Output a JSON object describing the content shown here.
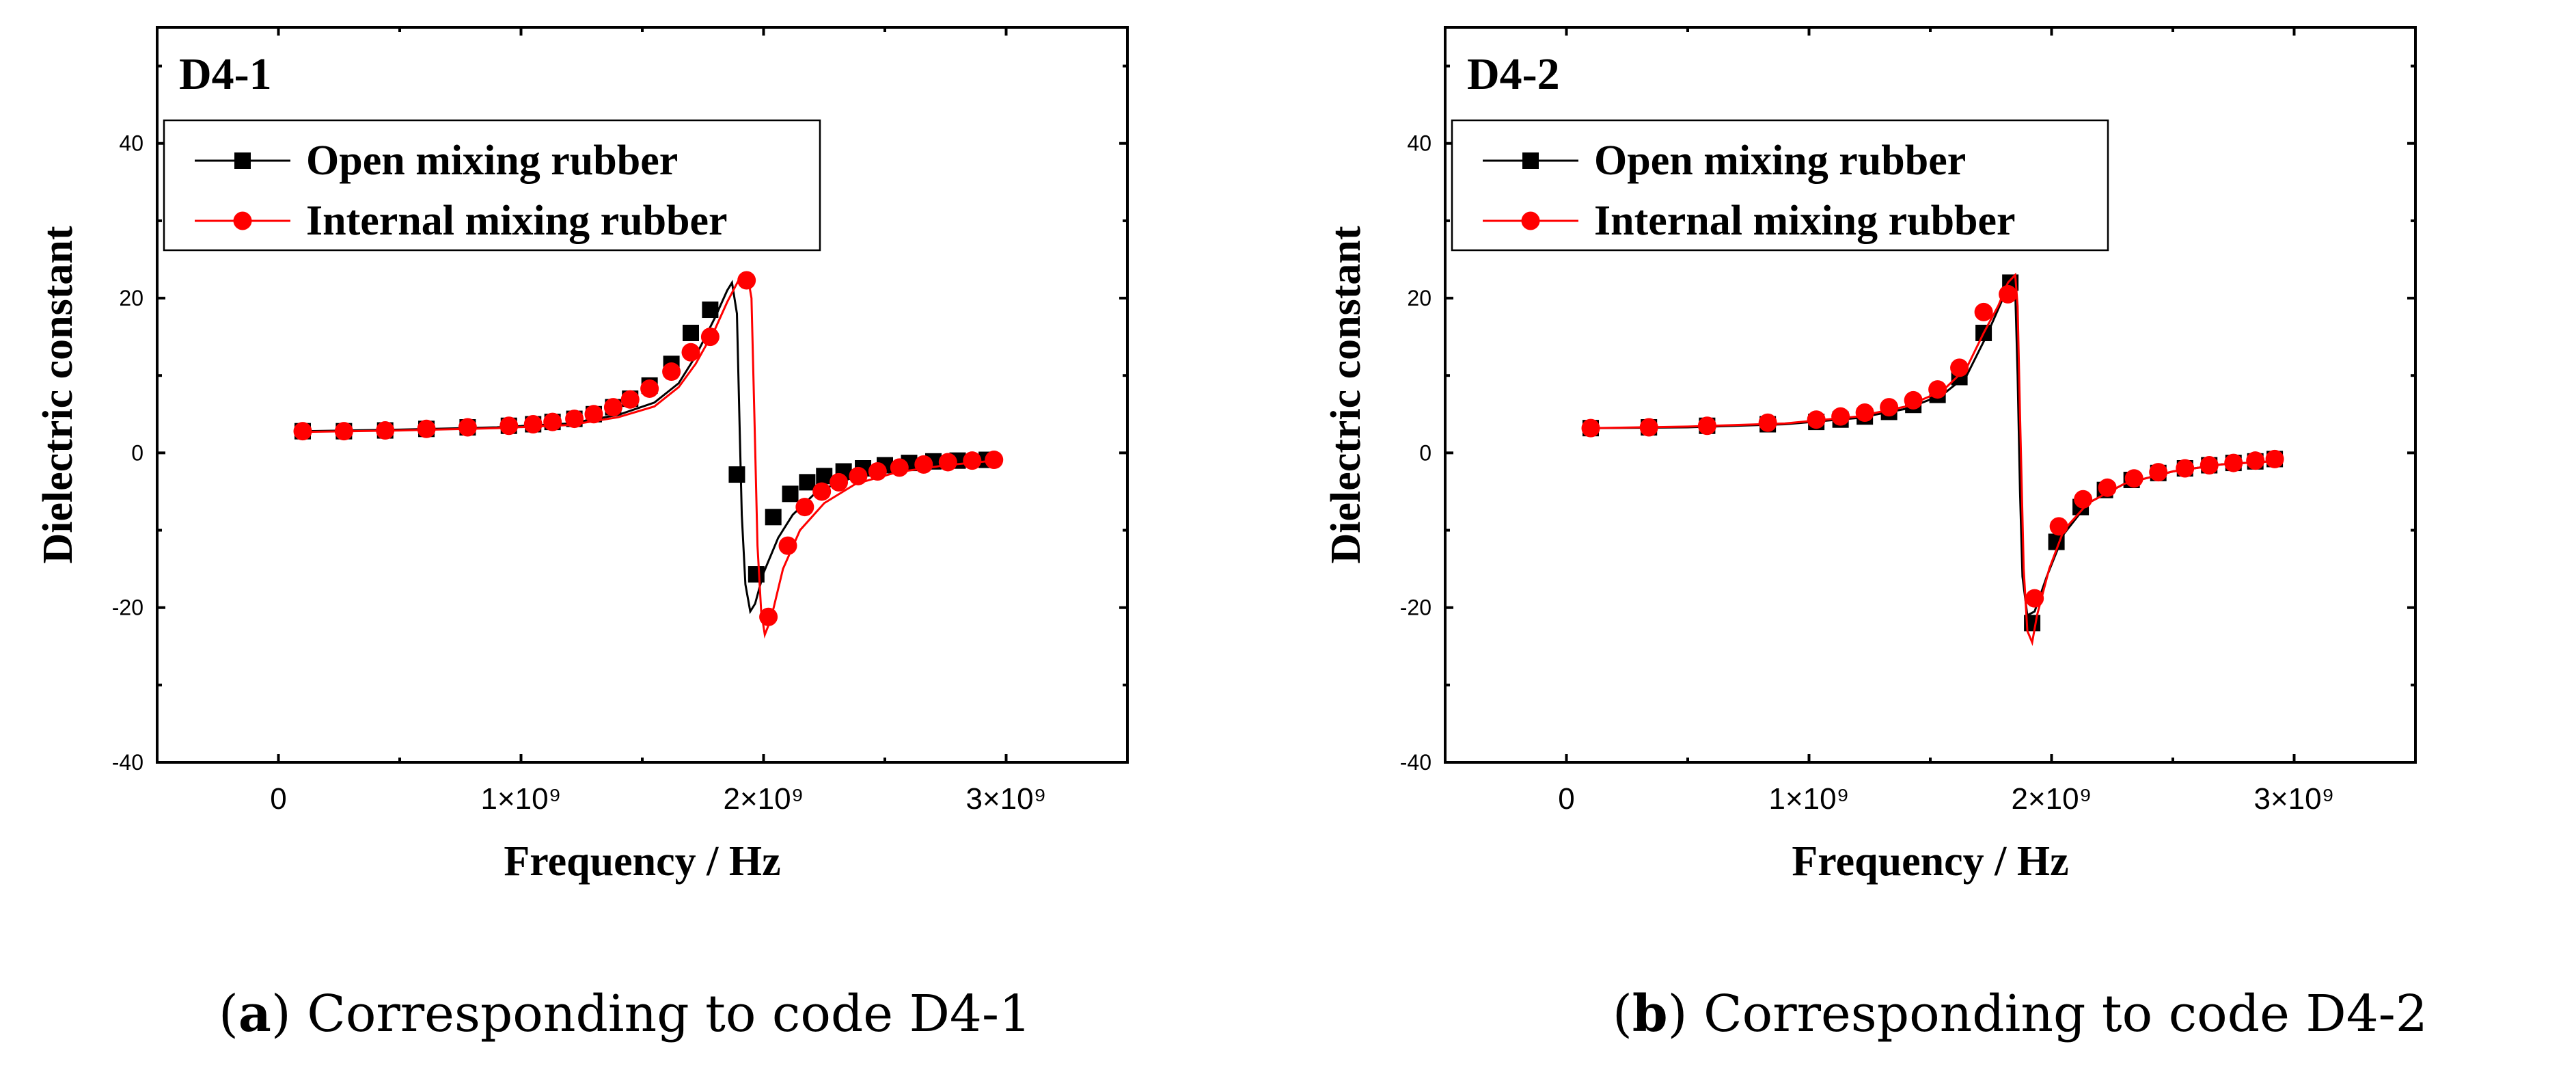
{
  "figure": {
    "captions": [
      {
        "letter": "a",
        "text": "Corresponding to code D4-1"
      },
      {
        "letter": "b",
        "text": "Corresponding to code D4-2"
      }
    ]
  },
  "chart_data": [
    {
      "type": "line",
      "title": "D4-1",
      "xlabel": "Frequency / Hz",
      "ylabel": "Dielectric constant",
      "xlim": [
        -500000000,
        3500000000
      ],
      "ylim": [
        -40,
        55
      ],
      "x_ticks": [
        0,
        1000000000,
        2000000000,
        3000000000
      ],
      "x_tick_labels": [
        "0",
        "1×10⁹",
        "2×10⁹",
        "3×10⁹"
      ],
      "y_ticks": [
        -40,
        -20,
        0,
        20,
        40
      ],
      "y_tick_labels": [
        "-40",
        "-20",
        "0",
        "20",
        "40"
      ],
      "legend_position": "top-left",
      "colors": {
        "Open mixing rubber": "#000000",
        "Internal mixing rubber": "#ff0000"
      },
      "series": [
        {
          "name": "Open mixing rubber",
          "line": [
            [
              100000000,
              2.8
            ],
            [
              500000000,
              3.0
            ],
            [
              900000000,
              3.3
            ],
            [
              1200000000,
              3.8
            ],
            [
              1400000000,
              4.9
            ],
            [
              1550000000,
              6.5
            ],
            [
              1650000000,
              9.0
            ],
            [
              1720000000,
              12.5
            ],
            [
              1800000000,
              17.5
            ],
            [
              1850000000,
              21.0
            ],
            [
              1870000000,
              22.0
            ],
            [
              1890000000,
              18.0
            ],
            [
              1900000000,
              5.0
            ],
            [
              1910000000,
              -8.0
            ],
            [
              1925000000,
              -17.0
            ],
            [
              1945000000,
              -20.5
            ],
            [
              1965000000,
              -19.5
            ],
            [
              2000000000,
              -15.5
            ],
            [
              2060000000,
              -11.0
            ],
            [
              2120000000,
              -8.0
            ],
            [
              2220000000,
              -5.0
            ],
            [
              2350000000,
              -3.4
            ],
            [
              2500000000,
              -2.3
            ],
            [
              2700000000,
              -1.5
            ],
            [
              2950000000,
              -1.0
            ]
          ],
          "markers": [
            [
              100000000,
              2.8
            ],
            [
              270000000,
              2.8
            ],
            [
              440000000,
              2.9
            ],
            [
              610000000,
              3.1
            ],
            [
              780000000,
              3.3
            ],
            [
              950000000,
              3.5
            ],
            [
              1050000000,
              3.7
            ],
            [
              1130000000,
              4.0
            ],
            [
              1220000000,
              4.4
            ],
            [
              1300000000,
              5.0
            ],
            [
              1380000000,
              5.9
            ],
            [
              1450000000,
              7.0
            ],
            [
              1530000000,
              8.7
            ],
            [
              1620000000,
              11.5
            ],
            [
              1700000000,
              15.5
            ],
            [
              1780000000,
              18.5
            ],
            [
              1890000000,
              -2.8
            ],
            [
              1970000000,
              -15.7
            ],
            [
              2040000000,
              -8.3
            ],
            [
              2110000000,
              -5.3
            ],
            [
              2180000000,
              -3.8
            ],
            [
              2250000000,
              -3.0
            ],
            [
              2330000000,
              -2.4
            ],
            [
              2410000000,
              -2.0
            ],
            [
              2500000000,
              -1.6
            ],
            [
              2600000000,
              -1.3
            ],
            [
              2700000000,
              -1.1
            ],
            [
              2800000000,
              -1.0
            ],
            [
              2920000000,
              -0.9
            ]
          ]
        },
        {
          "name": "Internal mixing rubber",
          "line": [
            [
              100000000,
              2.7
            ],
            [
              500000000,
              2.9
            ],
            [
              900000000,
              3.2
            ],
            [
              1200000000,
              3.6
            ],
            [
              1400000000,
              4.6
            ],
            [
              1550000000,
              6.0
            ],
            [
              1650000000,
              8.5
            ],
            [
              1720000000,
              11.5
            ],
            [
              1800000000,
              16.0
            ],
            [
              1850000000,
              19.5
            ],
            [
              1900000000,
              22.5
            ],
            [
              1935000000,
              22.8
            ],
            [
              1950000000,
              20.0
            ],
            [
              1962000000,
              5.0
            ],
            [
              1975000000,
              -12.0
            ],
            [
              1990000000,
              -20.5
            ],
            [
              2005000000,
              -23.5
            ],
            [
              2030000000,
              -21.5
            ],
            [
              2080000000,
              -15.0
            ],
            [
              2150000000,
              -10.0
            ],
            [
              2250000000,
              -6.5
            ],
            [
              2380000000,
              -4.0
            ],
            [
              2550000000,
              -2.5
            ],
            [
              2750000000,
              -1.6
            ],
            [
              2950000000,
              -1.0
            ]
          ],
          "markers": [
            [
              100000000,
              2.8
            ],
            [
              270000000,
              2.8
            ],
            [
              440000000,
              2.9
            ],
            [
              610000000,
              3.1
            ],
            [
              780000000,
              3.3
            ],
            [
              950000000,
              3.5
            ],
            [
              1050000000,
              3.7
            ],
            [
              1130000000,
              4.0
            ],
            [
              1220000000,
              4.4
            ],
            [
              1300000000,
              5.0
            ],
            [
              1380000000,
              5.9
            ],
            [
              1450000000,
              6.9
            ],
            [
              1530000000,
              8.3
            ],
            [
              1620000000,
              10.5
            ],
            [
              1700000000,
              13.0
            ],
            [
              1780000000,
              15.0
            ],
            [
              1930000000,
              22.3
            ],
            [
              2020000000,
              -21.2
            ],
            [
              2100000000,
              -12.0
            ],
            [
              2170000000,
              -7.0
            ],
            [
              2240000000,
              -5.0
            ],
            [
              2310000000,
              -3.8
            ],
            [
              2390000000,
              -3.0
            ],
            [
              2470000000,
              -2.4
            ],
            [
              2560000000,
              -1.9
            ],
            [
              2660000000,
              -1.5
            ],
            [
              2760000000,
              -1.2
            ],
            [
              2860000000,
              -1.0
            ],
            [
              2950000000,
              -0.9
            ]
          ]
        }
      ]
    },
    {
      "type": "line",
      "title": "D4-2",
      "xlabel": "Frequency / Hz",
      "ylabel": "Dielectric constant",
      "xlim": [
        -500000000,
        3500000000
      ],
      "ylim": [
        -40,
        55
      ],
      "x_ticks": [
        0,
        1000000000,
        2000000000,
        3000000000
      ],
      "x_tick_labels": [
        "0",
        "1×10⁹",
        "2×10⁹",
        "3×10⁹"
      ],
      "y_ticks": [
        -40,
        -20,
        0,
        20,
        40
      ],
      "y_tick_labels": [
        "-40",
        "-20",
        "0",
        "20",
        "40"
      ],
      "legend_position": "top-left",
      "colors": {
        "Open mixing rubber": "#000000",
        "Internal mixing rubber": "#ff0000"
      },
      "series": [
        {
          "name": "Open mixing rubber",
          "line": [
            [
              100000000,
              3.2
            ],
            [
              500000000,
              3.3
            ],
            [
              900000000,
              3.7
            ],
            [
              1200000000,
              4.5
            ],
            [
              1400000000,
              5.7
            ],
            [
              1550000000,
              7.5
            ],
            [
              1650000000,
              10.0
            ],
            [
              1730000000,
              15.0
            ],
            [
              1800000000,
              20.0
            ],
            [
              1830000000,
              22.5
            ],
            [
              1850000000,
              21.0
            ],
            [
              1860000000,
              10.0
            ],
            [
              1870000000,
              -5.0
            ],
            [
              1880000000,
              -16.0
            ],
            [
              1900000000,
              -21.0
            ],
            [
              1930000000,
              -20.5
            ],
            [
              1980000000,
              -16.0
            ],
            [
              2050000000,
              -10.5
            ],
            [
              2150000000,
              -6.5
            ],
            [
              2300000000,
              -4.0
            ],
            [
              2500000000,
              -2.4
            ],
            [
              2700000000,
              -1.5
            ],
            [
              2950000000,
              -1.0
            ]
          ],
          "markers": [
            [
              100000000,
              3.2
            ],
            [
              340000000,
              3.3
            ],
            [
              580000000,
              3.5
            ],
            [
              830000000,
              3.7
            ],
            [
              1030000000,
              4.0
            ],
            [
              1130000000,
              4.3
            ],
            [
              1230000000,
              4.7
            ],
            [
              1330000000,
              5.3
            ],
            [
              1430000000,
              6.2
            ],
            [
              1530000000,
              7.5
            ],
            [
              1620000000,
              9.8
            ],
            [
              1720000000,
              15.5
            ],
            [
              1830000000,
              22.0
            ],
            [
              1920000000,
              -22.0
            ],
            [
              2020000000,
              -11.5
            ],
            [
              2120000000,
              -7.0
            ],
            [
              2220000000,
              -4.8
            ],
            [
              2330000000,
              -3.5
            ],
            [
              2440000000,
              -2.6
            ],
            [
              2550000000,
              -2.0
            ],
            [
              2650000000,
              -1.6
            ],
            [
              2750000000,
              -1.3
            ],
            [
              2840000000,
              -1.1
            ],
            [
              2920000000,
              -0.8
            ]
          ]
        },
        {
          "name": "Internal mixing rubber",
          "line": [
            [
              100000000,
              3.2
            ],
            [
              500000000,
              3.4
            ],
            [
              900000000,
              3.8
            ],
            [
              1200000000,
              4.7
            ],
            [
              1400000000,
              6.0
            ],
            [
              1550000000,
              8.0
            ],
            [
              1650000000,
              11.0
            ],
            [
              1720000000,
              15.5
            ],
            [
              1780000000,
              19.0
            ],
            [
              1820000000,
              22.0
            ],
            [
              1850000000,
              23.0
            ],
            [
              1860000000,
              19.0
            ],
            [
              1870000000,
              5.0
            ],
            [
              1885000000,
              -15.0
            ],
            [
              1900000000,
              -23.0
            ],
            [
              1920000000,
              -24.5
            ],
            [
              1940000000,
              -21.0
            ],
            [
              1990000000,
              -15.0
            ],
            [
              2050000000,
              -10.0
            ],
            [
              2150000000,
              -6.5
            ],
            [
              2300000000,
              -4.0
            ],
            [
              2500000000,
              -2.4
            ],
            [
              2700000000,
              -1.5
            ],
            [
              2950000000,
              -1.0
            ]
          ],
          "markers": [
            [
              100000000,
              3.2
            ],
            [
              340000000,
              3.3
            ],
            [
              580000000,
              3.5
            ],
            [
              830000000,
              3.9
            ],
            [
              1030000000,
              4.3
            ],
            [
              1130000000,
              4.7
            ],
            [
              1230000000,
              5.2
            ],
            [
              1330000000,
              5.9
            ],
            [
              1430000000,
              6.8
            ],
            [
              1530000000,
              8.2
            ],
            [
              1620000000,
              11.0
            ],
            [
              1720000000,
              18.2
            ],
            [
              1820000000,
              20.5
            ],
            [
              1930000000,
              -18.8
            ],
            [
              2030000000,
              -9.5
            ],
            [
              2130000000,
              -6.0
            ],
            [
              2230000000,
              -4.5
            ],
            [
              2340000000,
              -3.3
            ],
            [
              2440000000,
              -2.5
            ],
            [
              2550000000,
              -2.0
            ],
            [
              2650000000,
              -1.6
            ],
            [
              2750000000,
              -1.3
            ],
            [
              2840000000,
              -1.0
            ],
            [
              2920000000,
              -0.8
            ]
          ]
        }
      ]
    }
  ]
}
